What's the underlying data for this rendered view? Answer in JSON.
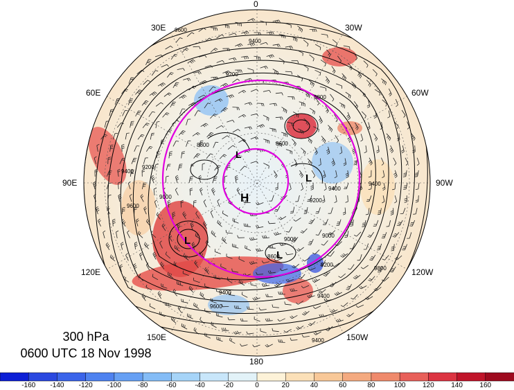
{
  "map": {
    "title_level": "300 hPa",
    "title_time": "0600 UTC 18 Nov 1998",
    "longitude_labels": {
      "top": "0",
      "bottom": "180",
      "left": "90E",
      "right": "90W",
      "upper_left_inner": "30E",
      "upper_right_inner": "30W",
      "upper_left": "60E",
      "upper_right": "60W",
      "lower_left": "120E",
      "lower_right": "120W",
      "lower_left_inner": "150E",
      "lower_right_inner": "150W"
    },
    "pressure_centers": [
      {
        "label": "H"
      },
      {
        "label": "L"
      },
      {
        "label": "L"
      },
      {
        "label": "L"
      },
      {
        "label": "L"
      }
    ],
    "contour_labels": [
      "9600",
      "9400",
      "9200",
      "8800",
      "8800",
      "9400",
      "9400",
      "8600",
      "9200",
      "9000",
      "9400",
      "9200",
      "9400",
      "9000",
      "9000",
      "9600",
      "9400",
      "8600",
      "9200",
      "9400",
      "9800",
      "9600"
    ],
    "colors": {
      "magenta_circle": "#e000e0",
      "contour": "#000000"
    }
  },
  "colorbar": {
    "tick_labels": [
      "-160",
      "-140",
      "-120",
      "-100",
      "-80",
      "-60",
      "-40",
      "-20",
      "0",
      "20",
      "40",
      "60",
      "80",
      "100",
      "120",
      "140",
      "160"
    ],
    "colors": [
      "#0c1fd6",
      "#2a48e0",
      "#3a64ea",
      "#4e82f0",
      "#66a0f4",
      "#84bcf6",
      "#a6d4f8",
      "#c8e6fa",
      "#e2f2f8",
      "#fdf2d8",
      "#fbe0b8",
      "#f8c898",
      "#f4aa80",
      "#ef8a6c",
      "#e8605a",
      "#dc3442",
      "#c0142a",
      "#9e0a1e"
    ]
  }
}
